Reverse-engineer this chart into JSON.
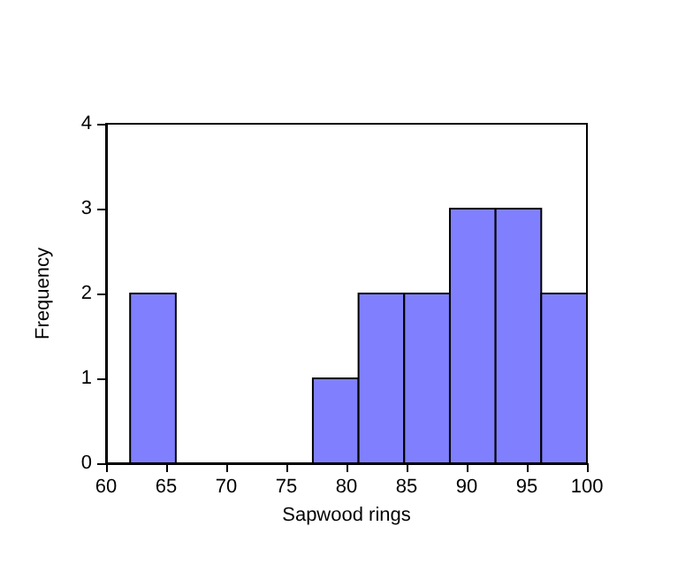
{
  "chart_data": {
    "type": "histogram",
    "xlabel": "Sapwood rings",
    "ylabel": "Frequency",
    "bins": [
      62,
      65.8,
      69.6,
      73.4,
      77.2,
      81,
      84.8,
      88.6,
      92.4,
      96.2,
      100
    ],
    "values": [
      2,
      0,
      0,
      0,
      1,
      2,
      2,
      3,
      3,
      2
    ],
    "color": "#8080ff",
    "xlim": [
      60,
      100
    ],
    "xticks": [
      60,
      65,
      70,
      75,
      80,
      85,
      90,
      95,
      100
    ],
    "ylim": [
      0,
      4
    ],
    "yticks": [
      0,
      1,
      2,
      3,
      4
    ],
    "grid": false
  }
}
